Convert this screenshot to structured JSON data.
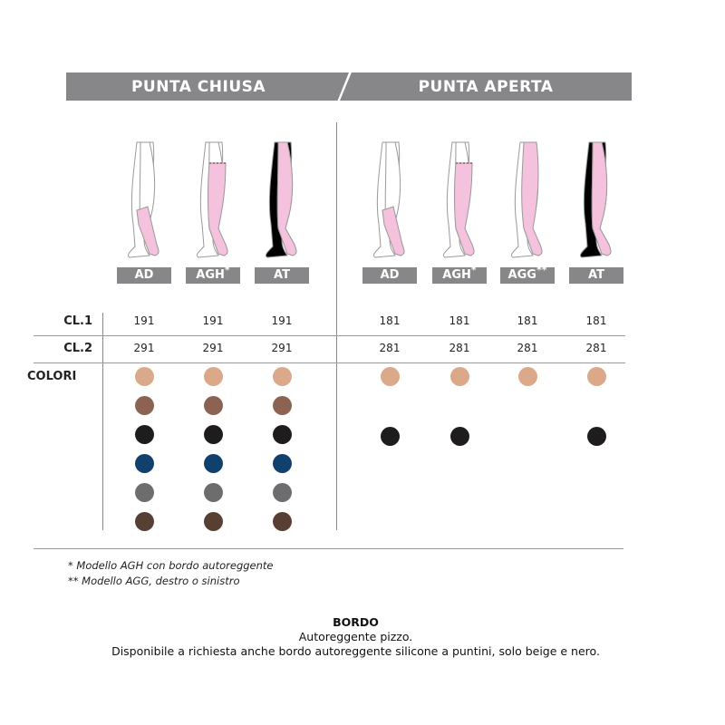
{
  "header": {
    "closed_toe": "PUNTA CHIUSA",
    "open_toe": "PUNTA APERTA"
  },
  "models": {
    "closed": [
      {
        "code": "AD",
        "mark": "",
        "coverage": "knee"
      },
      {
        "code": "AGH",
        "mark": "*",
        "coverage": "thigh-lace"
      },
      {
        "code": "AT",
        "mark": "",
        "coverage": "full"
      }
    ],
    "open": [
      {
        "code": "AD",
        "mark": "",
        "coverage": "knee"
      },
      {
        "code": "AGH",
        "mark": "*",
        "coverage": "thigh-lace"
      },
      {
        "code": "AGG",
        "mark": "**",
        "coverage": "single-leg"
      },
      {
        "code": "AT",
        "mark": "",
        "coverage": "full"
      }
    ]
  },
  "rows": {
    "cl1": {
      "label": "CL.1",
      "closed": [
        "191",
        "191",
        "191"
      ],
      "open": [
        "181",
        "181",
        "181",
        "181"
      ]
    },
    "cl2": {
      "label": "CL.2",
      "closed": [
        "291",
        "291",
        "291"
      ],
      "open": [
        "281",
        "281",
        "281",
        "281"
      ]
    },
    "colors": {
      "label": "COLORI"
    }
  },
  "colors": {
    "closed": [
      "#dba88a",
      "#8c6352",
      "#1e1c1d",
      "#10406e",
      "#6d6d6f",
      "#573f33"
    ],
    "open": [
      "#dba88a",
      "#1e1c1d"
    ],
    "open_black_columns": [
      true,
      true,
      false,
      true
    ]
  },
  "footnotes": [
    "*  Modello AGH con bordo autoreggente",
    "**  Modello AGG, destro o sinistro"
  ],
  "bordo": {
    "title": "BORDO",
    "line1": "Autoreggente pizzo.",
    "line2": "Disponibile a richiesta anche bordo autoreggente silicone a puntini, solo beige e nero."
  }
}
